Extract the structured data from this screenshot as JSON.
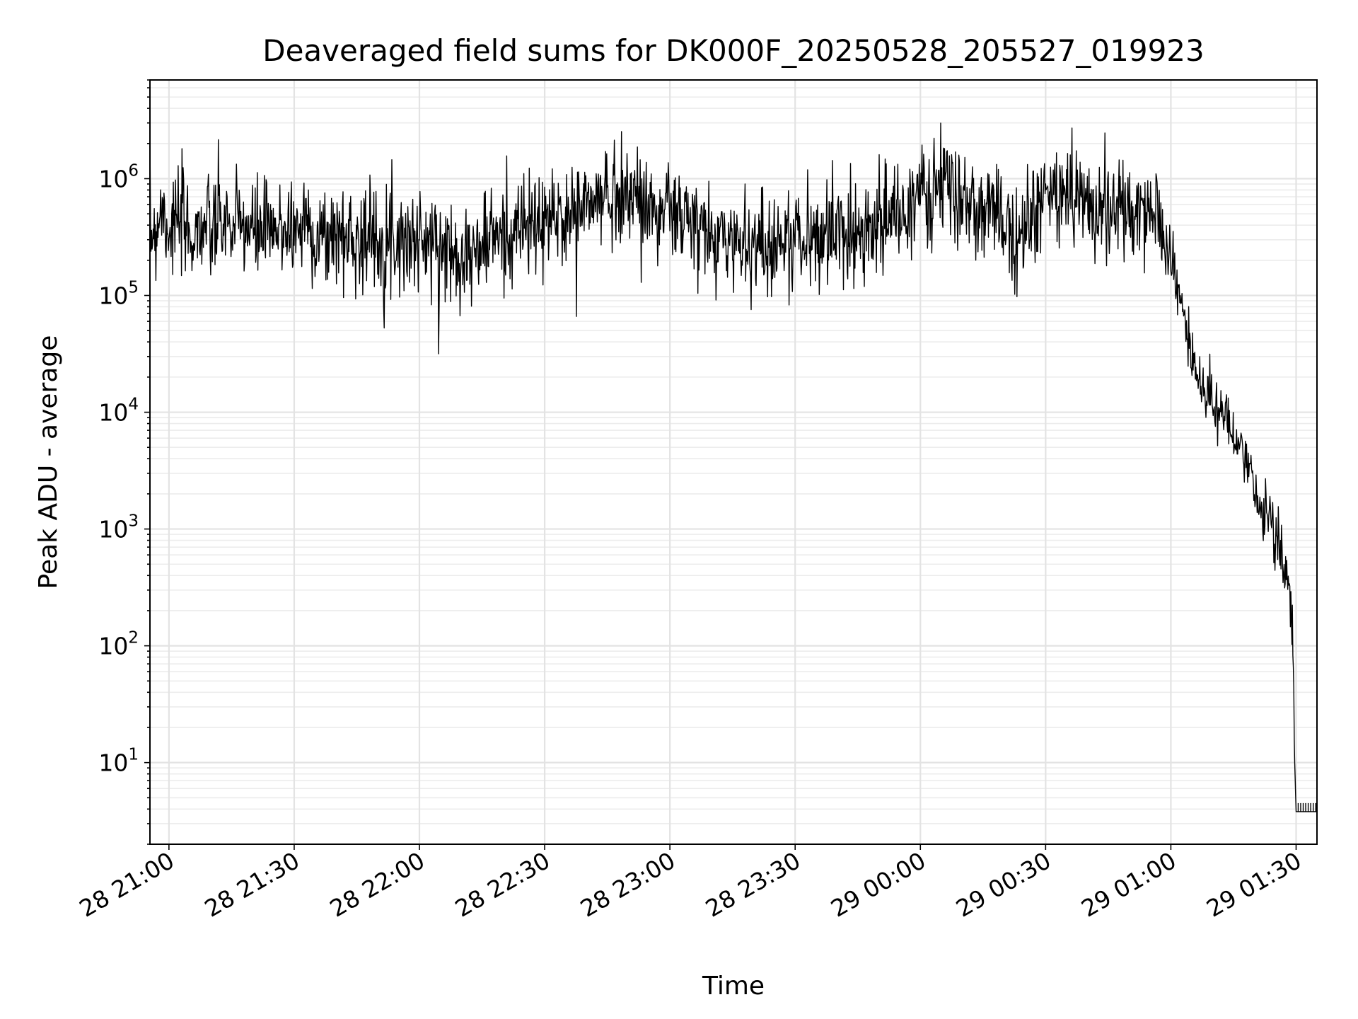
{
  "chart_data": {
    "type": "line",
    "title": "Deaveraged field sums for DK000F_20250528_205527_019923",
    "xlabel": "Time",
    "ylabel": "Peak ADU - average",
    "yscale": "log",
    "ylim": [
      2,
      7000000
    ],
    "xlim": [
      "2025-05-28 20:55:27",
      "2025-05-29 01:35:00"
    ],
    "grid": true,
    "x_ticks": [
      {
        "t": "2025-05-28 21:00",
        "label": "28 21:00"
      },
      {
        "t": "2025-05-28 21:30",
        "label": "28 21:30"
      },
      {
        "t": "2025-05-28 22:00",
        "label": "28 22:00"
      },
      {
        "t": "2025-05-28 22:30",
        "label": "28 22:30"
      },
      {
        "t": "2025-05-28 23:00",
        "label": "28 23:00"
      },
      {
        "t": "2025-05-28 23:30",
        "label": "28 23:30"
      },
      {
        "t": "2025-05-29 00:00",
        "label": "29 00:00"
      },
      {
        "t": "2025-05-29 00:30",
        "label": "29 00:30"
      },
      {
        "t": "2025-05-29 01:00",
        "label": "29 01:00"
      },
      {
        "t": "2025-05-29 01:30",
        "label": "29 01:30"
      }
    ],
    "y_ticks": [
      {
        "value": 10,
        "base": "10",
        "exp": "1"
      },
      {
        "value": 100,
        "base": "10",
        "exp": "2"
      },
      {
        "value": 1000,
        "base": "10",
        "exp": "3"
      },
      {
        "value": 10000,
        "base": "10",
        "exp": "4"
      },
      {
        "value": 100000,
        "base": "10",
        "exp": "5"
      },
      {
        "value": 1000000,
        "base": "10",
        "exp": "6"
      }
    ],
    "series": [
      {
        "color": "#000000",
        "points": [
          [
            "2025-05-28 20:55:27",
            350000
          ],
          [
            "2025-05-28 20:57:00",
            380000
          ],
          [
            "2025-05-28 20:58:00",
            600000
          ],
          [
            "2025-05-28 21:00:00",
            380000
          ],
          [
            "2025-05-28 21:03:00",
            420000
          ],
          [
            "2025-05-28 21:05:00",
            320000
          ],
          [
            "2025-05-28 21:08:00",
            400000
          ],
          [
            "2025-05-28 21:10:00",
            340000
          ],
          [
            "2025-05-28 21:13:00",
            450000
          ],
          [
            "2025-05-28 21:15:00",
            360000
          ],
          [
            "2025-05-28 21:18:00",
            420000
          ],
          [
            "2025-05-28 21:20:00",
            330000
          ],
          [
            "2025-05-28 21:23:00",
            380000
          ],
          [
            "2025-05-28 21:25:00",
            300000
          ],
          [
            "2025-05-28 21:28:00",
            420000
          ],
          [
            "2025-05-28 21:30:00",
            350000
          ],
          [
            "2025-05-28 21:33:00",
            450000
          ],
          [
            "2025-05-28 21:35:00",
            320000
          ],
          [
            "2025-05-28 21:38:00",
            300000
          ],
          [
            "2025-05-28 21:40:00",
            350000
          ],
          [
            "2025-05-28 21:43:00",
            300000
          ],
          [
            "2025-05-28 21:45:00",
            330000
          ],
          [
            "2025-05-28 21:48:00",
            310000
          ],
          [
            "2025-05-28 21:50:00",
            320000
          ],
          [
            "2025-05-28 21:53:00",
            300000
          ],
          [
            "2025-05-28 21:55:00",
            330000
          ],
          [
            "2025-05-28 21:58:00",
            290000
          ],
          [
            "2025-05-28 22:00:00",
            310000
          ],
          [
            "2025-05-28 22:03:00",
            260000
          ],
          [
            "2025-05-28 22:05:00",
            280000
          ],
          [
            "2025-05-28 22:08:00",
            220000
          ],
          [
            "2025-05-28 22:10:00",
            260000
          ],
          [
            "2025-05-28 22:13:00",
            210000
          ],
          [
            "2025-05-28 22:15:00",
            270000
          ],
          [
            "2025-05-28 22:18:00",
            330000
          ],
          [
            "2025-05-28 22:20:00",
            300000
          ],
          [
            "2025-05-28 22:23:00",
            360000
          ],
          [
            "2025-05-28 22:25:00",
            400000
          ],
          [
            "2025-05-28 22:28:00",
            380000
          ],
          [
            "2025-05-28 22:30:00",
            420000
          ],
          [
            "2025-05-28 22:33:00",
            450000
          ],
          [
            "2025-05-28 22:35:00",
            480000
          ],
          [
            "2025-05-28 22:38:00",
            520000
          ],
          [
            "2025-05-28 22:40:00",
            600000
          ],
          [
            "2025-05-28 22:43:00",
            650000
          ],
          [
            "2025-05-28 22:45:00",
            700000
          ],
          [
            "2025-05-28 22:48:00",
            800000
          ],
          [
            "2025-05-28 22:50:00",
            750000
          ],
          [
            "2025-05-28 22:53:00",
            650000
          ],
          [
            "2025-05-28 22:55:00",
            600000
          ],
          [
            "2025-05-28 22:58:00",
            500000
          ],
          [
            "2025-05-28 23:00:00",
            550000
          ],
          [
            "2025-05-28 23:03:00",
            450000
          ],
          [
            "2025-05-28 23:05:00",
            420000
          ],
          [
            "2025-05-28 23:08:00",
            320000
          ],
          [
            "2025-05-28 23:10:00",
            300000
          ],
          [
            "2025-05-28 23:13:00",
            320000
          ],
          [
            "2025-05-28 23:15:00",
            280000
          ],
          [
            "2025-05-28 23:18:00",
            300000
          ],
          [
            "2025-05-28 23:20:00",
            280000
          ],
          [
            "2025-05-28 23:23:00",
            260000
          ],
          [
            "2025-05-28 23:25:00",
            300000
          ],
          [
            "2025-05-28 23:28:00",
            280000
          ],
          [
            "2025-05-28 23:30:00",
            320000
          ],
          [
            "2025-05-28 23:33:00",
            300000
          ],
          [
            "2025-05-28 23:35:00",
            310000
          ],
          [
            "2025-05-28 23:38:00",
            350000
          ],
          [
            "2025-05-28 23:40:00",
            330000
          ],
          [
            "2025-05-28 23:43:00",
            360000
          ],
          [
            "2025-05-28 23:45:00",
            380000
          ],
          [
            "2025-05-28 23:48:00",
            400000
          ],
          [
            "2025-05-28 23:50:00",
            420000
          ],
          [
            "2025-05-28 23:53:00",
            450000
          ],
          [
            "2025-05-28 23:55:00",
            480000
          ],
          [
            "2025-05-28 23:58:00",
            600000
          ],
          [
            "2025-05-29 00:00:00",
            700000
          ],
          [
            "2025-05-29 00:03:00",
            800000
          ],
          [
            "2025-05-29 00:05:00",
            850000
          ],
          [
            "2025-05-29 00:08:00",
            750000
          ],
          [
            "2025-05-29 00:10:00",
            600000
          ],
          [
            "2025-05-29 00:13:00",
            550000
          ],
          [
            "2025-05-29 00:15:00",
            500000
          ],
          [
            "2025-05-29 00:18:00",
            450000
          ],
          [
            "2025-05-29 00:20:00",
            420000
          ],
          [
            "2025-05-29 00:23:00",
            380000
          ],
          [
            "2025-05-29 00:25:00",
            400000
          ],
          [
            "2025-05-29 00:28:00",
            500000
          ],
          [
            "2025-05-29 00:30:00",
            650000
          ],
          [
            "2025-05-29 00:33:00",
            800000
          ],
          [
            "2025-05-29 00:35:00",
            750000
          ],
          [
            "2025-05-29 00:38:00",
            700000
          ],
          [
            "2025-05-29 00:40:00",
            650000
          ],
          [
            "2025-05-29 00:43:00",
            600000
          ],
          [
            "2025-05-29 00:45:00",
            550000
          ],
          [
            "2025-05-29 00:48:00",
            500000
          ],
          [
            "2025-05-29 00:50:00",
            480000
          ],
          [
            "2025-05-29 00:53:00",
            450000
          ],
          [
            "2025-05-29 00:55:00",
            500000
          ],
          [
            "2025-05-29 00:58:00",
            400000
          ],
          [
            "2025-05-29 01:00:00",
            200000
          ],
          [
            "2025-05-29 01:02:00",
            100000
          ],
          [
            "2025-05-29 01:04:00",
            45000
          ],
          [
            "2025-05-29 01:06:00",
            22000
          ],
          [
            "2025-05-29 01:08:00",
            15000
          ],
          [
            "2025-05-29 01:10:00",
            13000
          ],
          [
            "2025-05-29 01:12:00",
            10000
          ],
          [
            "2025-05-29 01:14:00",
            7000
          ],
          [
            "2025-05-29 01:16:00",
            5000
          ],
          [
            "2025-05-29 01:18:00",
            3500
          ],
          [
            "2025-05-29 01:20:00",
            2200
          ],
          [
            "2025-05-29 01:22:00",
            1500
          ],
          [
            "2025-05-29 01:24:00",
            1200
          ],
          [
            "2025-05-29 01:26:00",
            800
          ],
          [
            "2025-05-29 01:27:00",
            450
          ],
          [
            "2025-05-29 01:28:00",
            300
          ],
          [
            "2025-05-29 01:29:00",
            150
          ],
          [
            "2025-05-29 01:29:20",
            80
          ],
          [
            "2025-05-29 01:29:40",
            10
          ],
          [
            "2025-05-29 01:30:00",
            3.8
          ],
          [
            "2025-05-29 01:35:00",
            3.8
          ]
        ]
      }
    ]
  }
}
